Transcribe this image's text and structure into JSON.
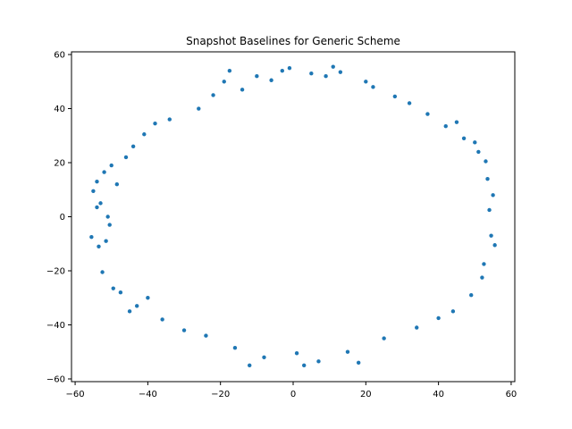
{
  "chart_data": {
    "type": "scatter",
    "title": "Snapshot Baselines for Generic Scheme",
    "xlabel": "",
    "ylabel": "",
    "xlim": [
      -61,
      61
    ],
    "ylim": [
      -61,
      61
    ],
    "x_ticks": [
      -60,
      -40,
      -20,
      0,
      20,
      40,
      60
    ],
    "y_ticks": [
      -60,
      -40,
      -20,
      0,
      20,
      40,
      60
    ],
    "grid": false,
    "marker_color": "#1f77b4",
    "series": [
      {
        "points": [
          [
            -55.5,
            -7.5
          ],
          [
            -55,
            9.5
          ],
          [
            -54,
            13
          ],
          [
            -54,
            3.5
          ],
          [
            -53.5,
            -11
          ],
          [
            -53,
            5
          ],
          [
            -52.5,
            -20.5
          ],
          [
            -52,
            16.5
          ],
          [
            -51.5,
            -9
          ],
          [
            -51,
            0
          ],
          [
            -50.5,
            -3
          ],
          [
            -50,
            19
          ],
          [
            -49.5,
            -26.5
          ],
          [
            -48.5,
            12
          ],
          [
            -47.5,
            -28
          ],
          [
            -46,
            22
          ],
          [
            -45,
            -35
          ],
          [
            -44,
            26
          ],
          [
            -43,
            -33
          ],
          [
            -41,
            30.5
          ],
          [
            -40,
            -30
          ],
          [
            -38,
            34.5
          ],
          [
            -36,
            -38
          ],
          [
            -34,
            36
          ],
          [
            -30,
            -42
          ],
          [
            -26,
            40
          ],
          [
            -24,
            -44
          ],
          [
            -22,
            45
          ],
          [
            -19,
            50
          ],
          [
            -17.5,
            54
          ],
          [
            -16,
            -48.5
          ],
          [
            -14,
            47
          ],
          [
            -12,
            -55
          ],
          [
            -10,
            52
          ],
          [
            -8,
            -52
          ],
          [
            -6,
            50.5
          ],
          [
            -3,
            54
          ],
          [
            -1,
            55
          ],
          [
            1,
            -50.5
          ],
          [
            3,
            -55
          ],
          [
            5,
            53
          ],
          [
            7,
            -53.5
          ],
          [
            9,
            52
          ],
          [
            11,
            55.5
          ],
          [
            13,
            53.5
          ],
          [
            15,
            -50
          ],
          [
            18,
            -54
          ],
          [
            20,
            50
          ],
          [
            22,
            48
          ],
          [
            25,
            -45
          ],
          [
            28,
            44.5
          ],
          [
            32,
            42
          ],
          [
            34,
            -41
          ],
          [
            37,
            38
          ],
          [
            40,
            -37.5
          ],
          [
            42,
            33.5
          ],
          [
            44,
            -35
          ],
          [
            45,
            35
          ],
          [
            47,
            29
          ],
          [
            49,
            -29
          ],
          [
            50,
            27.5
          ],
          [
            51,
            24
          ],
          [
            52,
            -22.5
          ],
          [
            52.5,
            -17.5
          ],
          [
            53,
            20.5
          ],
          [
            53.5,
            14
          ],
          [
            54,
            2.5
          ],
          [
            54.5,
            -7
          ],
          [
            55,
            8
          ],
          [
            55.5,
            -10.5
          ]
        ]
      }
    ]
  }
}
